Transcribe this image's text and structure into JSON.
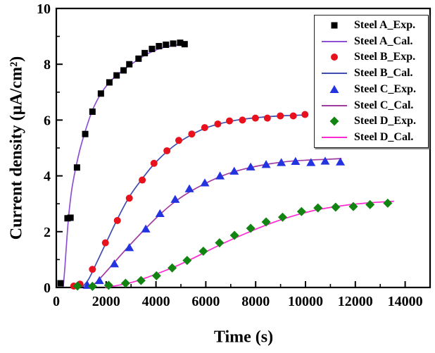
{
  "figure": {
    "background": "#ffffff"
  },
  "chart_data": {
    "type": "line",
    "title": "",
    "xlabel": "Time (s)",
    "ylabel": "Current density (µA/cm²)",
    "xlim": [
      0,
      15000
    ],
    "ylim": [
      0,
      10
    ],
    "x_major_ticks": [
      0,
      2000,
      4000,
      6000,
      8000,
      10000,
      12000,
      14000
    ],
    "x_minor_step": 1000,
    "y_major_ticks": [
      0,
      2,
      4,
      6,
      8,
      10
    ],
    "y_minor_step": 1,
    "grid": false,
    "tick_direction": "in",
    "legend_position": "top-right",
    "series": [
      {
        "name": "Steel A_Exp.",
        "kind": "scatter",
        "marker": "square",
        "color": "#000000",
        "points": [
          [
            170,
            0.15
          ],
          [
            450,
            2.48
          ],
          [
            570,
            2.5
          ],
          [
            830,
            4.3
          ],
          [
            1160,
            5.5
          ],
          [
            1450,
            6.3
          ],
          [
            1790,
            6.95
          ],
          [
            2130,
            7.35
          ],
          [
            2420,
            7.6
          ],
          [
            2700,
            7.78
          ],
          [
            2930,
            8.0
          ],
          [
            3300,
            8.2
          ],
          [
            3550,
            8.4
          ],
          [
            3840,
            8.55
          ],
          [
            4120,
            8.65
          ],
          [
            4400,
            8.7
          ],
          [
            4690,
            8.74
          ],
          [
            4970,
            8.77
          ],
          [
            5150,
            8.72
          ]
        ]
      },
      {
        "name": "Steel A_Cal.",
        "kind": "line",
        "color": "#8f4fd4",
        "points": [
          [
            280,
            0.02
          ],
          [
            350,
            0.8
          ],
          [
            420,
            1.7
          ],
          [
            500,
            2.6
          ],
          [
            620,
            3.5
          ],
          [
            760,
            4.2
          ],
          [
            950,
            4.95
          ],
          [
            1160,
            5.6
          ],
          [
            1450,
            6.35
          ],
          [
            1790,
            6.95
          ],
          [
            2130,
            7.35
          ],
          [
            2420,
            7.6
          ],
          [
            2700,
            7.8
          ],
          [
            2930,
            7.95
          ],
          [
            3300,
            8.18
          ],
          [
            3550,
            8.32
          ],
          [
            3840,
            8.45
          ],
          [
            4120,
            8.55
          ],
          [
            4400,
            8.62
          ],
          [
            4690,
            8.67
          ],
          [
            4970,
            8.7
          ],
          [
            5250,
            8.72
          ]
        ]
      },
      {
        "name": "Steel B_Exp.",
        "kind": "scatter",
        "marker": "circle",
        "color": "#e8121e",
        "points": [
          [
            700,
            0.05
          ],
          [
            950,
            0.12
          ],
          [
            1450,
            0.65
          ],
          [
            1970,
            1.6
          ],
          [
            2450,
            2.4
          ],
          [
            2930,
            3.2
          ],
          [
            3450,
            3.85
          ],
          [
            3920,
            4.45
          ],
          [
            4440,
            4.9
          ],
          [
            4915,
            5.27
          ],
          [
            5435,
            5.5
          ],
          [
            5956,
            5.73
          ],
          [
            6480,
            5.86
          ],
          [
            6950,
            5.97
          ],
          [
            7470,
            6.0
          ],
          [
            7990,
            6.07
          ],
          [
            8470,
            6.07
          ],
          [
            8990,
            6.15
          ],
          [
            9510,
            6.15
          ],
          [
            9980,
            6.2
          ]
        ]
      },
      {
        "name": "Steel B_Cal.",
        "kind": "line",
        "color": "#3f4cb0",
        "points": [
          [
            1050,
            0.02
          ],
          [
            1300,
            0.3
          ],
          [
            1600,
            0.85
          ],
          [
            1970,
            1.55
          ],
          [
            2450,
            2.45
          ],
          [
            2930,
            3.25
          ],
          [
            3450,
            3.9
          ],
          [
            3920,
            4.42
          ],
          [
            4440,
            4.87
          ],
          [
            4915,
            5.2
          ],
          [
            5435,
            5.48
          ],
          [
            5956,
            5.7
          ],
          [
            6480,
            5.85
          ],
          [
            6950,
            5.95
          ],
          [
            7470,
            6.03
          ],
          [
            7990,
            6.08
          ],
          [
            8470,
            6.12
          ],
          [
            8990,
            6.15
          ],
          [
            9510,
            6.17
          ],
          [
            9980,
            6.18
          ]
        ]
      },
      {
        "name": "Steel C_Exp.",
        "kind": "scatter",
        "marker": "triangle",
        "color": "#2433e0",
        "points": [
          [
            1250,
            0.08
          ],
          [
            1730,
            0.25
          ],
          [
            2330,
            0.85
          ],
          [
            2930,
            1.43
          ],
          [
            3590,
            2.1
          ],
          [
            4160,
            2.65
          ],
          [
            4770,
            3.16
          ],
          [
            5340,
            3.54
          ],
          [
            5960,
            3.75
          ],
          [
            6570,
            4.0
          ],
          [
            7140,
            4.17
          ],
          [
            7800,
            4.32
          ],
          [
            8420,
            4.41
          ],
          [
            9030,
            4.48
          ],
          [
            9600,
            4.52
          ],
          [
            10220,
            4.48
          ],
          [
            10790,
            4.53
          ],
          [
            11400,
            4.5
          ]
        ]
      },
      {
        "name": "Steel C_Cal.",
        "kind": "line",
        "color": "#a03ca0",
        "points": [
          [
            1400,
            0.02
          ],
          [
            1730,
            0.3
          ],
          [
            2330,
            0.9
          ],
          [
            2930,
            1.5
          ],
          [
            3590,
            2.12
          ],
          [
            4160,
            2.62
          ],
          [
            4770,
            3.08
          ],
          [
            5340,
            3.42
          ],
          [
            5960,
            3.72
          ],
          [
            6570,
            3.97
          ],
          [
            7140,
            4.15
          ],
          [
            7800,
            4.3
          ],
          [
            8420,
            4.41
          ],
          [
            9030,
            4.49
          ],
          [
            9600,
            4.54
          ],
          [
            10220,
            4.57
          ],
          [
            10790,
            4.59
          ],
          [
            11450,
            4.62
          ]
        ]
      },
      {
        "name": "Steel D_Exp.",
        "kind": "scatter",
        "marker": "diamond",
        "color": "#128412",
        "points": [
          [
            850,
            0.05
          ],
          [
            1450,
            0.04
          ],
          [
            2100,
            0.08
          ],
          [
            2780,
            0.15
          ],
          [
            3400,
            0.25
          ],
          [
            4020,
            0.42
          ],
          [
            4650,
            0.7
          ],
          [
            5250,
            0.97
          ],
          [
            5900,
            1.3
          ],
          [
            6550,
            1.6
          ],
          [
            7150,
            1.87
          ],
          [
            7800,
            2.12
          ],
          [
            8420,
            2.35
          ],
          [
            9080,
            2.52
          ],
          [
            9840,
            2.72
          ],
          [
            10500,
            2.85
          ],
          [
            11210,
            2.88
          ],
          [
            11920,
            2.9
          ],
          [
            12590,
            2.97
          ],
          [
            13300,
            3.02
          ]
        ]
      },
      {
        "name": "Steel D_Cal.",
        "kind": "line",
        "color": "#ff2ad2",
        "points": [
          [
            1950,
            0.0
          ],
          [
            2500,
            0.08
          ],
          [
            3100,
            0.2
          ],
          [
            3700,
            0.38
          ],
          [
            4300,
            0.58
          ],
          [
            4900,
            0.8
          ],
          [
            5500,
            1.05
          ],
          [
            6100,
            1.32
          ],
          [
            6700,
            1.58
          ],
          [
            7300,
            1.82
          ],
          [
            7900,
            2.05
          ],
          [
            8550,
            2.28
          ],
          [
            9200,
            2.48
          ],
          [
            9850,
            2.65
          ],
          [
            10500,
            2.79
          ],
          [
            11150,
            2.89
          ],
          [
            11800,
            2.97
          ],
          [
            12500,
            3.03
          ],
          [
            13550,
            3.09
          ]
        ]
      }
    ]
  }
}
